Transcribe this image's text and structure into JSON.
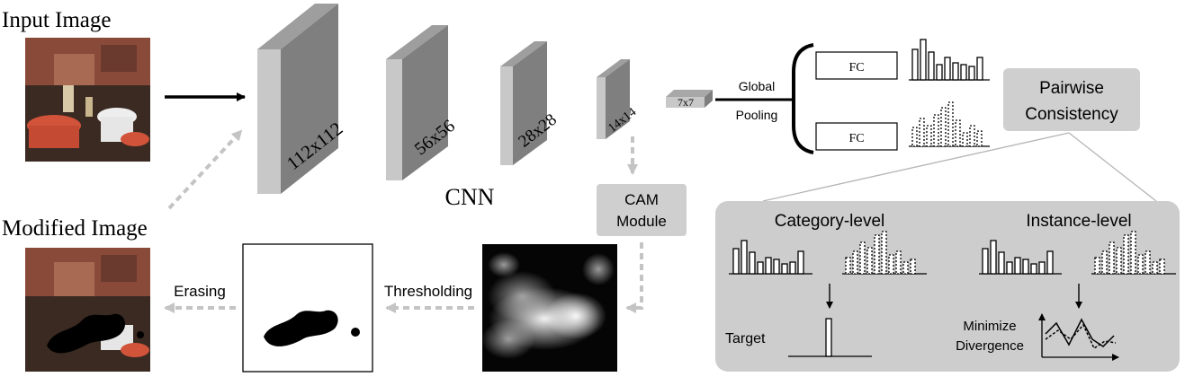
{
  "labels": {
    "input_image": "Input Image",
    "modified_image": "Modified Image",
    "cnn": "CNN",
    "layer_112": "112x112",
    "layer_56": "56x56",
    "layer_28": "28x28",
    "layer_14": "14x14",
    "layer_7": "7x7",
    "global": "Global",
    "pooling": "Pooling",
    "fc_top": "FC",
    "fc_bottom": "FC",
    "pairwise_line1": "Pairwise",
    "pairwise_line2": "Consistency",
    "cam_line1": "CAM",
    "cam_line2": "Module",
    "category_level": "Category-level",
    "instance_level": "Instance-level",
    "target": "Target",
    "minimize": "Minimize",
    "divergence": "Divergence",
    "thresholding": "Thresholding",
    "erasing": "Erasing"
  },
  "colors": {
    "block_front": "#c8c8c8",
    "block_side": "#7f7f7f",
    "box_gray": "#cfcfcf",
    "panel_gray": "#cdcdcd",
    "arrow_dashed": "#c4c4c4",
    "photo_wall": "#8a4a3a",
    "photo_table": "#d0533a",
    "photo_floor": "#3a2a22"
  },
  "icons": {
    "input_photo": "restaurant-photo",
    "modified_photo": "restaurant-photo-erased",
    "heatmap": "cam-heatmap",
    "mask": "binary-mask"
  }
}
